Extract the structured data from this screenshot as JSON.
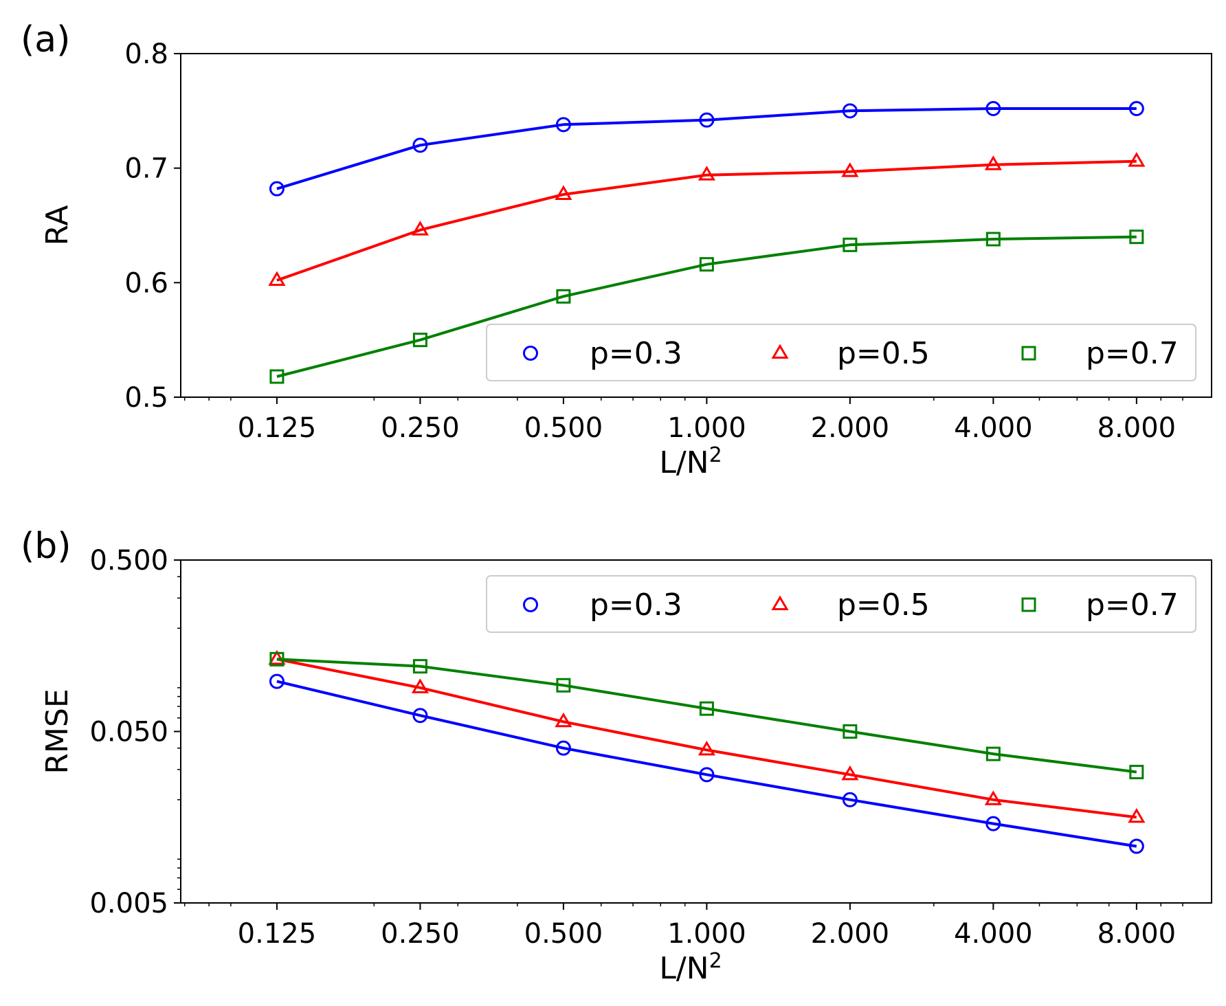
{
  "chart_data": [
    {
      "panel_label": "(a)",
      "type": "line",
      "xscale": "log2",
      "yscale": "linear",
      "xlabel": "L/N",
      "xlabel_sup": "2",
      "ylabel": "RA",
      "x": [
        0.125,
        0.25,
        0.5,
        1,
        2,
        4,
        8
      ],
      "xticklabels": [
        "0.125",
        "0.250",
        "0.500",
        "1.000",
        "2.000",
        "4.000",
        "8.000"
      ],
      "xlim": [
        0.0785,
        11.5
      ],
      "ylim": [
        0.5,
        0.8
      ],
      "yticks": [
        0.5,
        0.6,
        0.7,
        0.8
      ],
      "yticklabels": [
        "0.5",
        "0.6",
        "0.7",
        "0.8"
      ],
      "legend_position": "lower-right",
      "legend_layout": "3-columns",
      "series": [
        {
          "name": "p=0.3",
          "color": "#0000ff",
          "marker": "circle",
          "values": [
            0.682,
            0.72,
            0.738,
            0.742,
            0.75,
            0.752,
            0.752
          ]
        },
        {
          "name": "p=0.5",
          "color": "#ff0000",
          "marker": "triangle",
          "values": [
            0.602,
            0.646,
            0.677,
            0.694,
            0.697,
            0.703,
            0.706
          ]
        },
        {
          "name": "p=0.7",
          "color": "#008000",
          "marker": "square",
          "values": [
            0.518,
            0.55,
            0.588,
            0.616,
            0.633,
            0.638,
            0.64
          ]
        }
      ]
    },
    {
      "panel_label": "(b)",
      "type": "line",
      "xscale": "log2",
      "yscale": "log10",
      "xlabel": "L/N",
      "xlabel_sup": "2",
      "ylabel": "RMSE",
      "x": [
        0.125,
        0.25,
        0.5,
        1,
        2,
        4,
        8
      ],
      "xticklabels": [
        "0.125",
        "0.250",
        "0.500",
        "1.000",
        "2.000",
        "4.000",
        "8.000"
      ],
      "xlim": [
        0.0785,
        11.5
      ],
      "ylim": [
        0.005,
        0.5
      ],
      "yticks": [
        0.005,
        0.05,
        0.5
      ],
      "yticklabels": [
        "0.005",
        "0.050",
        "0.500"
      ],
      "legend_position": "upper-right",
      "legend_layout": "3-columns",
      "series": [
        {
          "name": "p=0.3",
          "color": "#0000ff",
          "marker": "circle",
          "values": [
            0.098,
            0.062,
            0.04,
            0.028,
            0.02,
            0.0145,
            0.0107
          ]
        },
        {
          "name": "p=0.5",
          "color": "#ff0000",
          "marker": "triangle",
          "values": [
            0.132,
            0.09,
            0.057,
            0.039,
            0.028,
            0.02,
            0.0158
          ]
        },
        {
          "name": "p=0.7",
          "color": "#008000",
          "marker": "square",
          "values": [
            0.132,
            0.12,
            0.093,
            0.068,
            0.05,
            0.037,
            0.029
          ]
        }
      ]
    }
  ]
}
